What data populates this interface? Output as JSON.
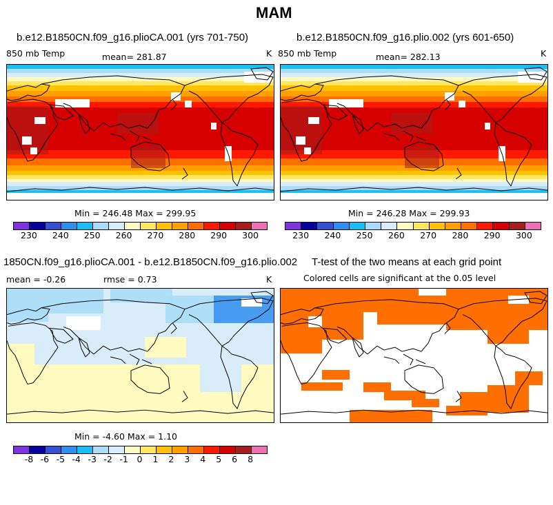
{
  "figure": {
    "title": "MAM"
  },
  "panels": [
    {
      "title": "b.e12.B1850CN.f09_g16.plioCA.001 (yrs 701-750)",
      "variable": "850 mb Temp",
      "mean_text": "mean=  281.87",
      "units": "K",
      "minmax_text": "Min = 246.48 Max = 299.95",
      "field": "temperature"
    },
    {
      "title": "b.e12.B1850CN.f09_g16.plio.002 (yrs 601-650)",
      "variable": "850 mb Temp",
      "mean_text": "mean=  282.13",
      "units": "K",
      "minmax_text": "Min = 246.28 Max = 299.93",
      "field": "temperature"
    },
    {
      "title": "1850CN.f09_g16.plioCA.001 - b.e12.B1850CN.f09_g16.plio.002",
      "mean_text": "mean =   -0.26",
      "rmse_text": "rmse =    0.73",
      "units": "K",
      "minmax_text": "Min =  -4.60 Max =   1.10",
      "field": "difference"
    },
    {
      "title": "T-test of the two means at each grid point",
      "subtitle": "Colored cells are significant at the 0.05 level",
      "field": "significance",
      "significant_color": "#ff6e00"
    }
  ],
  "colorbars": {
    "temperature": {
      "colors": [
        "#8033e0",
        "#0a00a0",
        "#3550d0",
        "#2f8ff0",
        "#19c0f5",
        "#a8dcf8",
        "#d8ecfa",
        "#fffbc0",
        "#ffe760",
        "#ffc100",
        "#ffa000",
        "#ff6f00",
        "#ff1900",
        "#d60000",
        "#a61e1e",
        "#f070b8"
      ],
      "labels": [
        "230",
        "240",
        "250",
        "260",
        "270",
        "280",
        "290",
        "300"
      ]
    },
    "difference": {
      "colors": [
        "#8033e0",
        "#0a00a0",
        "#3550d0",
        "#2f8ff0",
        "#19c0f5",
        "#a8dcf8",
        "#d8ecfa",
        "#fffbc0",
        "#ffe760",
        "#ffc100",
        "#ffa000",
        "#ff6f00",
        "#ff1900",
        "#d60000",
        "#a61e1e",
        "#f070b8"
      ],
      "labels": [
        "-8",
        "-6",
        "-5",
        "-4",
        "-3",
        "-2",
        "-1",
        "0",
        "1",
        "2",
        "3",
        "4",
        "5",
        "6",
        "8"
      ]
    }
  }
}
